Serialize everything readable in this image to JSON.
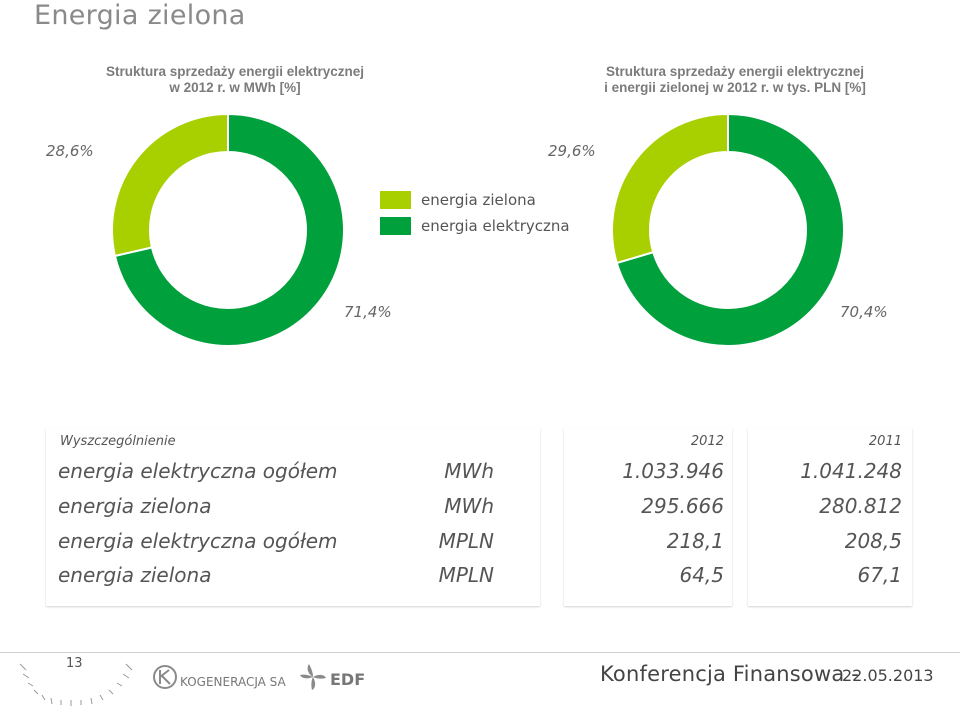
{
  "page": {
    "title": "Energia zielona",
    "page_number": "13"
  },
  "charts": {
    "left": {
      "subtitle_line1": "Struktura sprzedaży energii elektrycznej",
      "subtitle_line2": "w 2012 r. w MWh [%]",
      "label_green": "28,6%",
      "label_electric": "71,4%"
    },
    "right": {
      "subtitle_line1": "Struktura sprzedaży energii elektrycznej",
      "subtitle_line2": "i energii zielonej w 2012 r. w tys. PLN [%]",
      "label_green": "29,6%",
      "label_electric": "70,4%"
    },
    "legend": {
      "green": "energia zielona",
      "electric": "energia elektryczna"
    },
    "colors": {
      "green_energy": "#a8d000",
      "electric_energy": "#00a03c"
    }
  },
  "chart_data": [
    {
      "type": "pie",
      "categories": [
        "energia zielona",
        "energia elektryczna"
      ],
      "values": [
        28.6,
        71.4
      ],
      "title": "Struktura sprzedaży energii elektrycznej w 2012 r. w MWh [%]"
    },
    {
      "type": "pie",
      "categories": [
        "energia zielona",
        "energia elektryczna"
      ],
      "values": [
        29.6,
        70.4
      ],
      "title": "Struktura sprzedaży energii elektrycznej i energii zielonej w 2012 r. w tys. PLN [%]"
    }
  ],
  "table": {
    "headers": {
      "item": "Wyszczególnienie",
      "y2012": "2012",
      "y2011": "2011"
    },
    "rows": [
      {
        "item": "energia elektryczna ogółem",
        "unit": "MWh",
        "y2012": "1.033.946",
        "y2011": "1.041.248"
      },
      {
        "item": "energia zielona",
        "unit": "MWh",
        "y2012": "295.666",
        "y2011": "280.812"
      },
      {
        "item": "energia elektryczna ogółem",
        "unit": "MPLN",
        "y2012": "218,1",
        "y2011": "208,5"
      },
      {
        "item": "energia zielona",
        "unit": "MPLN",
        "y2012": "64,5",
        "y2011": "67,1"
      }
    ]
  },
  "footer": {
    "logo1": "KOGENERACJA SA",
    "logo2": "EDF",
    "conference": "Konferencja Finansowa -",
    "date": "22.05.2013"
  }
}
